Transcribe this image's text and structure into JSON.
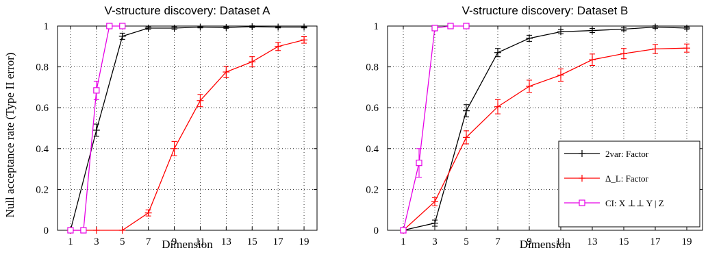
{
  "chart_data": [
    {
      "type": "line",
      "title": "V-structure discovery: Dataset A",
      "xlabel": "Dimension",
      "ylabel": "Null acceptance rate (Type II error)",
      "xlim": [
        0,
        20
      ],
      "ylim": [
        0,
        1
      ],
      "xticks": [
        "1",
        "3",
        "5",
        "7",
        "9",
        "11",
        "13",
        "15",
        "17",
        "19"
      ],
      "yticks": [
        "0",
        "0.2",
        "0.4",
        "0.6",
        "0.8",
        "1"
      ],
      "grid": "dotted",
      "series": [
        {
          "name": "2var: Factor",
          "color": "#000000",
          "marker": "plus",
          "x": [
            1,
            3,
            5,
            7,
            9,
            11,
            13,
            15,
            17,
            19
          ],
          "y": [
            0,
            0.49,
            0.95,
            0.99,
            0.99,
            0.995,
            0.993,
            0.997,
            0.995,
            0.995
          ],
          "err": [
            0,
            0.03,
            0.015,
            0.006,
            0.006,
            0.004,
            0.004,
            0.004,
            0.004,
            0.004
          ]
        },
        {
          "name": "Δ_L: Factor",
          "color": "#ff0000",
          "marker": "plus",
          "x": [
            1,
            3,
            5,
            7,
            9,
            11,
            13,
            15,
            17,
            19
          ],
          "y": [
            0,
            0,
            0,
            0.085,
            0.4,
            0.635,
            0.775,
            0.825,
            0.9,
            0.932
          ],
          "err": [
            0,
            0,
            0,
            0.015,
            0.035,
            0.03,
            0.028,
            0.025,
            0.02,
            0.016
          ]
        },
        {
          "name": "CI: X ⊥⊥ Y | Z",
          "color": "#e600e6",
          "marker": "square",
          "x": [
            1,
            2,
            3,
            4,
            5
          ],
          "y": [
            0,
            0,
            0.685,
            1.0,
            1.0
          ],
          "err": [
            0,
            0,
            0.045,
            0,
            0
          ]
        }
      ]
    },
    {
      "type": "line",
      "title": "V-structure discovery: Dataset B",
      "xlabel": "Dimension",
      "ylabel": "",
      "xlim": [
        0,
        20
      ],
      "ylim": [
        0,
        1
      ],
      "xticks": [
        "1",
        "3",
        "5",
        "7",
        "9",
        "11",
        "13",
        "15",
        "17",
        "19"
      ],
      "yticks": [
        "0",
        "0.2",
        "0.4",
        "0.6",
        "0.8",
        "1"
      ],
      "grid": "dotted",
      "legend": "bottom-right",
      "series": [
        {
          "name": "2var: Factor",
          "color": "#000000",
          "marker": "plus",
          "x": [
            1,
            3,
            5,
            7,
            9,
            11,
            13,
            15,
            17,
            19
          ],
          "y": [
            0,
            0.035,
            0.585,
            0.87,
            0.94,
            0.972,
            0.978,
            0.985,
            0.995,
            0.99
          ],
          "err": [
            0,
            0.015,
            0.03,
            0.02,
            0.015,
            0.01,
            0.01,
            0.008,
            0.006,
            0.006
          ]
        },
        {
          "name": "Δ_L: Factor",
          "color": "#ff0000",
          "marker": "plus",
          "x": [
            1,
            3,
            5,
            7,
            9,
            11,
            13,
            15,
            17,
            19
          ],
          "y": [
            0,
            0.14,
            0.455,
            0.605,
            0.705,
            0.76,
            0.835,
            0.865,
            0.888,
            0.892
          ],
          "err": [
            0,
            0.02,
            0.032,
            0.035,
            0.03,
            0.03,
            0.028,
            0.025,
            0.022,
            0.02
          ]
        },
        {
          "name": "CI: X ⊥⊥ Y | Z",
          "color": "#e600e6",
          "marker": "square",
          "x": [
            1,
            2,
            3,
            4,
            5
          ],
          "y": [
            0,
            0.33,
            0.99,
            1.0,
            1.0
          ],
          "err": [
            0,
            0.07,
            0.01,
            0,
            0
          ]
        }
      ]
    }
  ]
}
